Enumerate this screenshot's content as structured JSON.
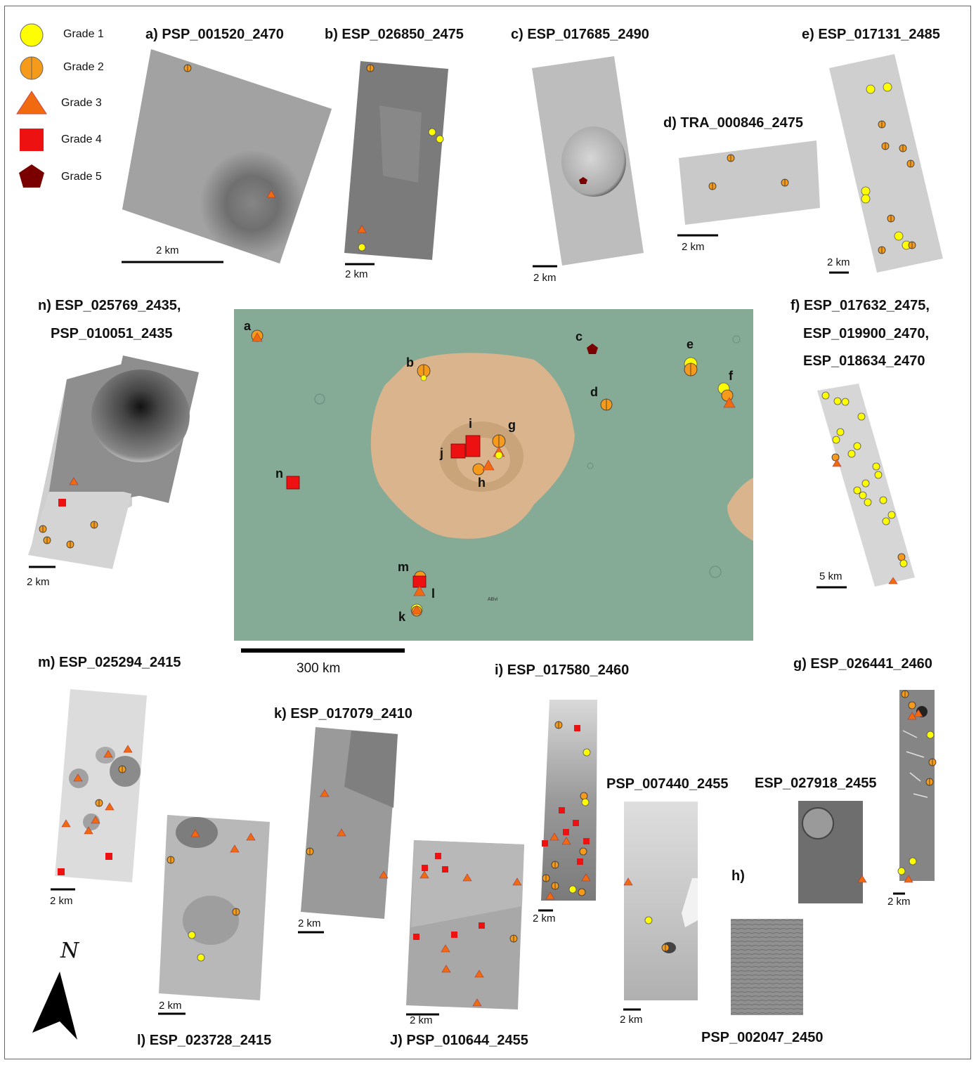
{
  "legend": [
    {
      "label": "Grade 1",
      "symbol": "yellow-circle",
      "color": "#ffff00"
    },
    {
      "label": "Grade 2",
      "symbol": "orange-split-circle",
      "color": "#f59a1a"
    },
    {
      "label": "Grade 3",
      "symbol": "orange-triangle",
      "color": "#f26a10"
    },
    {
      "label": "Grade 4",
      "symbol": "red-square",
      "color": "#ee1111"
    },
    {
      "label": "Grade 5",
      "symbol": "dark-red-pentagon",
      "color": "#7a0000"
    }
  ],
  "panels": {
    "a": {
      "title": "a) PSP_001520_2470",
      "scale": "2 km"
    },
    "b": {
      "title": "b) ESP_026850_2475",
      "scale": "2 km"
    },
    "c": {
      "title": "c) ESP_017685_2490",
      "scale": "2 km"
    },
    "d": {
      "title": "d) TRA_000846_2475",
      "scale": "2 km"
    },
    "e": {
      "title": "e) ESP_017131_2485",
      "scale": "2 km"
    },
    "n": {
      "title_line1": "n) ESP_025769_2435,",
      "title_line2": "PSP_010051_2435",
      "scale": "2 km"
    },
    "f": {
      "title_line1": "f) ESP_017632_2475,",
      "title_line2": "ESP_019900_2470,",
      "title_line3": "ESP_018634_2470",
      "scale": "5 km"
    },
    "m": {
      "title": "m) ESP_025294_2415",
      "scale": "2 km"
    },
    "k": {
      "title": "k) ESP_017079_2410",
      "scale": "2 km"
    },
    "i": {
      "title": "i) ESP_017580_2460",
      "scale": "2 km"
    },
    "g": {
      "title": "g) ESP_026441_2460",
      "scale": "2 km"
    },
    "h": {
      "label": "h)",
      "title1": "PSP_007440_2455",
      "title2": "ESP_027918_2455",
      "title3": "PSP_002047_2450",
      "scale": "2 km"
    },
    "l": {
      "title": "l) ESP_023728_2415",
      "scale": "2 km"
    },
    "j": {
      "title": "J) PSP_010644_2455",
      "scale": "2 km"
    }
  },
  "overview": {
    "scale": "300 km",
    "labels": [
      "a",
      "b",
      "c",
      "d",
      "e",
      "f",
      "g",
      "h",
      "i",
      "j",
      "k",
      "l",
      "m",
      "n"
    ],
    "small_text": "ABvi"
  },
  "north_arrow": "N"
}
